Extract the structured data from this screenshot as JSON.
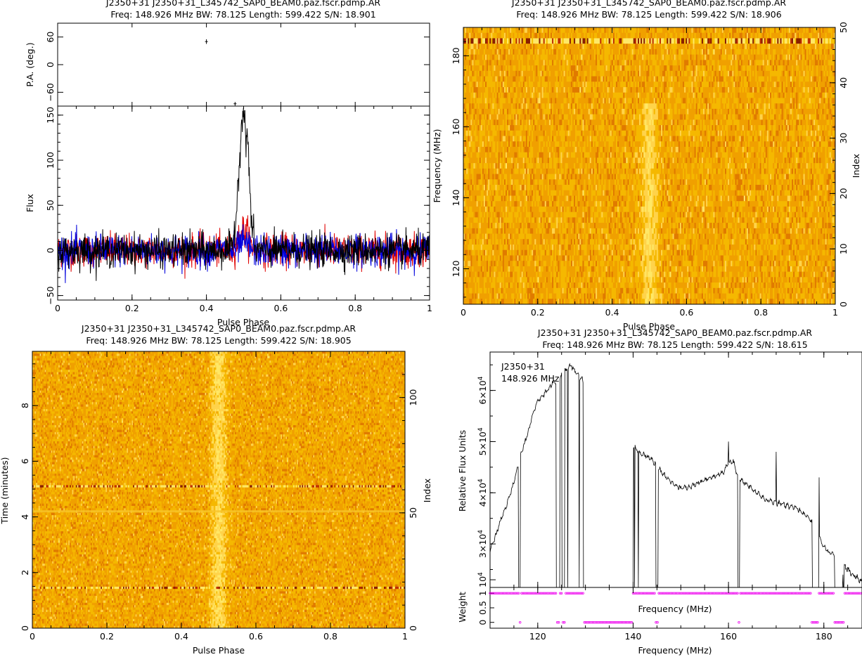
{
  "panels": [
    {
      "id": "profile",
      "title": "J2350+31  J2350+31_L345742_SAP0_BEAM0.paz.fscr.pdmp.AR",
      "subtitle": "Freq: 148.926 MHz BW: 78.125 Length: 599.422 S/N: 18.901",
      "xlabel": "Pulse Phase",
      "pa_ylabel": "P.A. (deg.)",
      "flux_ylabel": "Flux"
    },
    {
      "id": "freq-phase",
      "title": "J2350+31  J2350+31_L345742_SAP0_BEAM0.paz.fscr.pdmp.AR",
      "subtitle": "Freq: 148.926 MHz BW: 78.125 Length: 599.422 S/N: 18.906",
      "xlabel": "Pulse Phase",
      "ylabel": "Frequency (MHz)",
      "ylabel_right": "Index"
    },
    {
      "id": "time-phase",
      "title": "J2350+31  J2350+31_L345742_SAP0_BEAM0.paz.fscr.pdmp.AR",
      "subtitle": "Freq: 148.926 MHz BW: 78.125 Length: 599.422 S/N: 18.905",
      "xlabel": "Pulse Phase",
      "ylabel": "Time (minutes)",
      "ylabel_right": "Index"
    },
    {
      "id": "bandpass",
      "title": "J2350+31  J2350+31_L345742_SAP0_BEAM0.paz.fscr.pdmp.AR",
      "subtitle": "Freq: 148.926 MHz BW: 78.125 Length: 599.422 S/N: 18.615",
      "xlabel": "Frequency (MHz)",
      "ylabel": "Relative Flux Units",
      "weight_ylabel": "Weight",
      "inner_xlabel": "Frequency (MHz)",
      "annotation_source": "J2350+31",
      "annotation_freq": "148.926  MHz"
    }
  ],
  "chart_data": [
    {
      "type": "line",
      "panel": "profile-flux",
      "xlabel": "Pulse Phase",
      "ylabel": "Flux",
      "xlim": [
        0,
        1
      ],
      "ylim": [
        -55,
        160
      ],
      "xticks": [
        0,
        0.2,
        0.4,
        0.6,
        0.8,
        1
      ],
      "xtick_labels": [
        "0",
        "0.2",
        "0.4",
        "0.6",
        "0.8",
        "1"
      ],
      "yticks": [
        -50,
        0,
        50,
        100,
        150
      ],
      "ytick_labels": [
        "−50",
        "0",
        "50",
        "100",
        "150"
      ],
      "series_colors": {
        "total": "#000000",
        "linear": "#e00000",
        "circular": "#0000dd"
      },
      "noise_rms": 9,
      "pulse": {
        "center": 0.5,
        "peak": 155,
        "width": 0.02
      },
      "pulse_points": [
        [
          0.47,
          5
        ],
        [
          0.48,
          40
        ],
        [
          0.49,
          110
        ],
        [
          0.495,
          145
        ],
        [
          0.5,
          155
        ],
        [
          0.505,
          125
        ],
        [
          0.51,
          130
        ],
        [
          0.515,
          90
        ],
        [
          0.52,
          35
        ],
        [
          0.53,
          5
        ]
      ]
    },
    {
      "type": "scatter",
      "panel": "profile-pa",
      "ylabel": "P.A. (deg.)",
      "xlim": [
        0,
        1
      ],
      "ylim": [
        -90,
        90
      ],
      "yticks": [
        -60,
        0,
        60
      ],
      "ytick_labels": [
        "−60",
        "0",
        "60"
      ],
      "points": [
        {
          "x": 0.4,
          "y": 50,
          "err": 5
        },
        {
          "x": 0.477,
          "y": -85,
          "err": 4
        }
      ]
    },
    {
      "type": "heatmap",
      "panel": "freq-phase",
      "xlabel": "Pulse Phase",
      "ylabel": "Frequency (MHz)",
      "ylabel_right": "Index",
      "xlim": [
        0,
        1
      ],
      "ylim": [
        110,
        188
      ],
      "index_range": [
        0,
        50
      ],
      "xticks": [
        0,
        0.2,
        0.4,
        0.6,
        0.8,
        1
      ],
      "xtick_labels": [
        "0",
        "0.2",
        "0.4",
        "0.6",
        "0.8",
        "1"
      ],
      "yticks": [
        120,
        140,
        160,
        180
      ],
      "ytick_labels": [
        "120",
        "140",
        "160",
        "180"
      ],
      "right_ticks": [
        0,
        10,
        20,
        30,
        40,
        50
      ],
      "right_tick_labels": [
        "0",
        "10",
        "20",
        "30",
        "40",
        "50"
      ],
      "n_rows": 51,
      "n_cols": 256,
      "pulse_center": 0.5,
      "pulse_width": 0.015,
      "bright_row_index": 48,
      "pulse_visible_below_index": 37,
      "colormap": [
        "#e07a00",
        "#f0a000",
        "#f5b800",
        "#ffd34a",
        "#ffe866"
      ]
    },
    {
      "type": "heatmap",
      "panel": "time-phase",
      "xlabel": "Pulse Phase",
      "ylabel": "Time (minutes)",
      "ylabel_right": "Index",
      "xlim": [
        0,
        1
      ],
      "ylim": [
        0,
        9.95
      ],
      "index_range": [
        0,
        120
      ],
      "xticks": [
        0,
        0.2,
        0.4,
        0.6,
        0.8,
        1
      ],
      "xtick_labels": [
        "0",
        "0.2",
        "0.4",
        "0.6",
        "0.8",
        "1"
      ],
      "yticks": [
        0,
        2,
        4,
        6,
        8
      ],
      "ytick_labels": [
        "0",
        "2",
        "4",
        "6",
        "8"
      ],
      "right_ticks": [
        0,
        50,
        100
      ],
      "right_tick_labels": [
        "0",
        "50",
        "100"
      ],
      "n_rows": 120,
      "n_cols": 300,
      "pulse_center": 0.5,
      "pulse_width": 0.015,
      "bright_rows_minutes": [
        1.37,
        5.08,
        4.2
      ],
      "colormap": [
        "#e07a00",
        "#f0a000",
        "#f5b800",
        "#ffd34a",
        "#ffe866"
      ]
    },
    {
      "type": "line",
      "panel": "bandpass",
      "xlabel": "Frequency (MHz)",
      "ylabel": "Relative Flux Units",
      "xlim": [
        110,
        188
      ],
      "ylim": [
        21500,
        67500
      ],
      "xticks": [
        120,
        140,
        160,
        180
      ],
      "xtick_labels": [
        "120",
        "140",
        "160",
        "180"
      ],
      "yticks": [
        30000,
        40000,
        50000,
        60000
      ],
      "ytick_labels": [
        "3×10",
        "4×10",
        "5×10",
        "6×10"
      ],
      "ytick_exponent": "4",
      "extra_ytick_label": "10",
      "extra_ytick_value": 23000,
      "x": [
        110,
        112,
        114,
        115,
        116,
        117,
        118,
        119,
        120,
        121,
        122,
        123,
        124,
        125,
        126,
        127,
        128,
        129,
        130,
        139,
        140,
        141,
        142,
        144,
        146,
        148,
        150,
        152,
        154,
        156,
        158,
        159,
        160,
        161,
        162,
        164,
        166,
        168,
        170,
        172,
        174,
        176,
        177,
        178,
        179,
        180,
        181,
        182,
        184,
        186,
        188
      ],
      "y": [
        28500,
        34000,
        39000,
        42000,
        46000,
        49000,
        52000,
        55500,
        58000,
        59000,
        60000,
        61500,
        62000,
        63000,
        64000,
        65000,
        63500,
        62500,
        61000,
        50000,
        49000,
        48000,
        47500,
        46500,
        44000,
        42000,
        40800,
        41200,
        42000,
        42800,
        43500,
        44000,
        46000,
        46000,
        43000,
        41500,
        40000,
        38500,
        38000,
        37600,
        37200,
        35800,
        35000,
        33500,
        31500,
        29500,
        28500,
        28000,
        26000,
        24000,
        22500
      ],
      "drops": [
        116,
        124.5,
        125.4,
        126.3,
        128.7,
        139.5,
        140.3,
        141.1,
        145,
        162,
        177.8,
        178.6,
        182.6
      ],
      "spikes": [
        [
          170,
          48000
        ],
        [
          179,
          43000
        ],
        [
          160,
          50000
        ],
        [
          184,
          24000
        ]
      ],
      "color": "#000000"
    },
    {
      "type": "scatter",
      "panel": "bandpass-weight",
      "ylabel": "Weight",
      "xlim": [
        110,
        188
      ],
      "ylim": [
        -0.2,
        1.2
      ],
      "yticks": [
        0,
        0.5,
        1
      ],
      "ytick_labels": [
        "0",
        "0.5",
        "1"
      ],
      "zero_weight_ranges": [
        [
          116,
          116.3
        ],
        [
          123.8,
          124.6
        ],
        [
          125,
          125.6
        ],
        [
          129.5,
          140
        ],
        [
          144.7,
          145.2
        ],
        [
          162,
          162.3
        ],
        [
          177.5,
          179
        ],
        [
          182.2,
          184.2
        ]
      ],
      "color": "#ee00ee"
    }
  ]
}
